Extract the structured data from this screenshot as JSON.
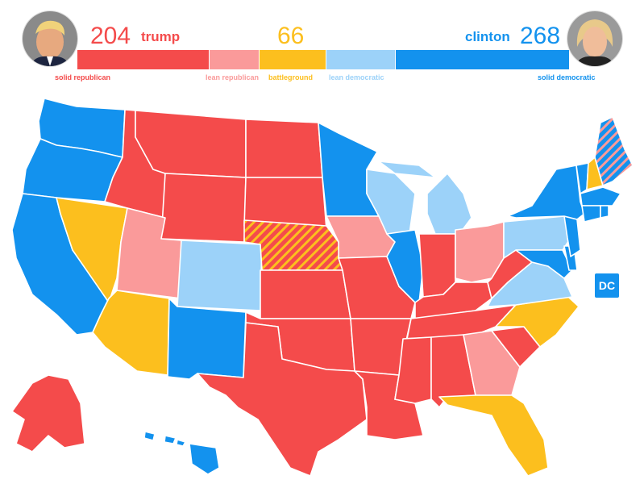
{
  "header": {
    "trump": {
      "count": "204",
      "name": "trump"
    },
    "battleground": {
      "count": "66"
    },
    "clinton": {
      "count": "268",
      "name": "clinton"
    }
  },
  "legend": {
    "solid_republican": "solid republican",
    "lean_republican": "lean republican",
    "battleground": "battleground",
    "lean_democratic": "lean democratic",
    "solid_democratic": "solid democratic"
  },
  "electoral_votes": {
    "solid_republican": 204,
    "battleground": 66,
    "solid_or_lean_democratic": 268
  },
  "colors": {
    "solid_republican": "#f44b4b",
    "lean_republican": "#fa9a9a",
    "battleground": "#fcbf1e",
    "lean_democratic": "#9cd2f9",
    "solid_democratic": "#1392ee",
    "text_republican": "#f44b4b",
    "text_battleground": "#fcbf1e",
    "text_democratic": "#1392ee"
  },
  "map": {
    "dc_label": "DC",
    "states": {
      "WA": "solid_democratic",
      "OR": "solid_democratic",
      "CA": "solid_democratic",
      "NV": "battleground",
      "ID": "solid_republican",
      "MT": "solid_republican",
      "WY": "solid_republican",
      "UT": "lean_republican",
      "AZ": "battleground",
      "CO": "lean_democratic",
      "NM": "solid_democratic",
      "ND": "solid_republican",
      "SD": "solid_republican",
      "NE": "split_battleground_republican",
      "KS": "solid_republican",
      "OK": "solid_republican",
      "TX": "solid_republican",
      "MN": "solid_democratic",
      "IA": "lean_republican",
      "MO": "solid_republican",
      "AR": "solid_republican",
      "LA": "solid_republican",
      "WI": "lean_democratic",
      "IL": "solid_democratic",
      "MI": "lean_democratic",
      "IN": "solid_republican",
      "OH": "lean_republican",
      "KY": "solid_republican",
      "TN": "solid_republican",
      "MS": "solid_republican",
      "AL": "solid_republican",
      "GA": "lean_republican",
      "FL": "battleground",
      "SC": "solid_republican",
      "NC": "battleground",
      "VA": "lean_democratic",
      "WV": "solid_republican",
      "PA": "lean_democratic",
      "NY": "solid_democratic",
      "NJ": "solid_democratic",
      "DE": "solid_democratic",
      "MD": "solid_democratic",
      "VT": "solid_democratic",
      "NH": "battleground",
      "ME": "split_democratic_battleground",
      "MA": "solid_democratic",
      "CT": "solid_democratic",
      "RI": "solid_democratic",
      "AK": "solid_republican",
      "HI": "solid_democratic",
      "DC": "solid_democratic"
    }
  }
}
